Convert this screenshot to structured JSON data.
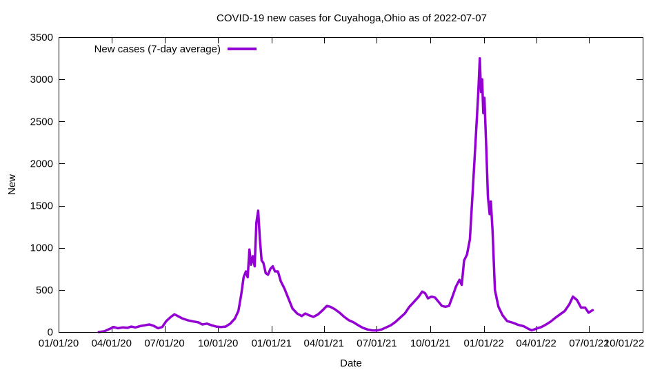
{
  "chart_data": {
    "type": "line",
    "title": "COVID-19 new cases for Cuyahoga,Ohio as of 2022-07-07",
    "xlabel": "Date",
    "ylabel": "New",
    "xlim": [
      "2020-01-01",
      "2022-10-01"
    ],
    "ylim": [
      0,
      3500
    ],
    "x_ticks": [
      "01/01/20",
      "04/01/20",
      "07/01/20",
      "10/01/20",
      "01/01/21",
      "04/01/21",
      "07/01/21",
      "10/01/21",
      "01/01/22",
      "04/01/22",
      "07/01/22",
      "10/01/22"
    ],
    "y_ticks": [
      0,
      500,
      1000,
      1500,
      2000,
      2500,
      3000,
      3500
    ],
    "grid": false,
    "legend_position": "top-left",
    "series": [
      {
        "name": "New cases (7-day average)",
        "color": "#9400d3",
        "points": [
          [
            "2020-03-10",
            0
          ],
          [
            "2020-03-20",
            10
          ],
          [
            "2020-03-28",
            35
          ],
          [
            "2020-04-05",
            60
          ],
          [
            "2020-04-12",
            45
          ],
          [
            "2020-04-20",
            55
          ],
          [
            "2020-04-28",
            50
          ],
          [
            "2020-05-05",
            65
          ],
          [
            "2020-05-12",
            55
          ],
          [
            "2020-05-20",
            70
          ],
          [
            "2020-05-28",
            80
          ],
          [
            "2020-06-05",
            90
          ],
          [
            "2020-06-12",
            75
          ],
          [
            "2020-06-20",
            45
          ],
          [
            "2020-06-27",
            60
          ],
          [
            "2020-07-04",
            130
          ],
          [
            "2020-07-12",
            180
          ],
          [
            "2020-07-18",
            210
          ],
          [
            "2020-07-24",
            190
          ],
          [
            "2020-08-01",
            160
          ],
          [
            "2020-08-10",
            140
          ],
          [
            "2020-08-20",
            125
          ],
          [
            "2020-08-28",
            115
          ],
          [
            "2020-09-04",
            90
          ],
          [
            "2020-09-12",
            100
          ],
          [
            "2020-09-20",
            80
          ],
          [
            "2020-09-28",
            65
          ],
          [
            "2020-10-06",
            60
          ],
          [
            "2020-10-14",
            65
          ],
          [
            "2020-10-22",
            100
          ],
          [
            "2020-10-30",
            160
          ],
          [
            "2020-11-05",
            250
          ],
          [
            "2020-11-10",
            450
          ],
          [
            "2020-11-14",
            650
          ],
          [
            "2020-11-18",
            720
          ],
          [
            "2020-11-21",
            650
          ],
          [
            "2020-11-24",
            980
          ],
          [
            "2020-11-27",
            800
          ],
          [
            "2020-11-30",
            900
          ],
          [
            "2020-12-03",
            780
          ],
          [
            "2020-12-06",
            1300
          ],
          [
            "2020-12-09",
            1440
          ],
          [
            "2020-12-12",
            1100
          ],
          [
            "2020-12-15",
            850
          ],
          [
            "2020-12-18",
            820
          ],
          [
            "2020-12-22",
            700
          ],
          [
            "2020-12-26",
            680
          ],
          [
            "2020-12-30",
            750
          ],
          [
            "2021-01-03",
            780
          ],
          [
            "2021-01-07",
            720
          ],
          [
            "2021-01-12",
            720
          ],
          [
            "2021-01-17",
            600
          ],
          [
            "2021-01-23",
            520
          ],
          [
            "2021-01-30",
            400
          ],
          [
            "2021-02-06",
            280
          ],
          [
            "2021-02-14",
            220
          ],
          [
            "2021-02-22",
            190
          ],
          [
            "2021-02-28",
            220
          ],
          [
            "2021-03-06",
            200
          ],
          [
            "2021-03-14",
            180
          ],
          [
            "2021-03-22",
            210
          ],
          [
            "2021-03-30",
            260
          ],
          [
            "2021-04-06",
            310
          ],
          [
            "2021-04-12",
            300
          ],
          [
            "2021-04-20",
            270
          ],
          [
            "2021-04-28",
            230
          ],
          [
            "2021-05-06",
            180
          ],
          [
            "2021-05-14",
            140
          ],
          [
            "2021-05-22",
            115
          ],
          [
            "2021-05-30",
            80
          ],
          [
            "2021-06-07",
            50
          ],
          [
            "2021-06-15",
            30
          ],
          [
            "2021-06-23",
            20
          ],
          [
            "2021-07-01",
            18
          ],
          [
            "2021-07-09",
            30
          ],
          [
            "2021-07-17",
            55
          ],
          [
            "2021-07-25",
            80
          ],
          [
            "2021-08-02",
            120
          ],
          [
            "2021-08-10",
            170
          ],
          [
            "2021-08-18",
            220
          ],
          [
            "2021-08-26",
            300
          ],
          [
            "2021-09-03",
            360
          ],
          [
            "2021-09-11",
            420
          ],
          [
            "2021-09-17",
            480
          ],
          [
            "2021-09-22",
            460
          ],
          [
            "2021-09-27",
            400
          ],
          [
            "2021-10-03",
            420
          ],
          [
            "2021-10-09",
            410
          ],
          [
            "2021-10-15",
            360
          ],
          [
            "2021-10-21",
            310
          ],
          [
            "2021-10-27",
            300
          ],
          [
            "2021-11-02",
            310
          ],
          [
            "2021-11-08",
            420
          ],
          [
            "2021-11-14",
            540
          ],
          [
            "2021-11-20",
            620
          ],
          [
            "2021-11-24",
            560
          ],
          [
            "2021-11-28",
            850
          ],
          [
            "2021-12-03",
            920
          ],
          [
            "2021-12-08",
            1100
          ],
          [
            "2021-12-13",
            1700
          ],
          [
            "2021-12-18",
            2300
          ],
          [
            "2021-12-22",
            2800
          ],
          [
            "2021-12-25",
            3250
          ],
          [
            "2021-12-27",
            2850
          ],
          [
            "2021-12-29",
            3000
          ],
          [
            "2021-12-31",
            2600
          ],
          [
            "2022-01-02",
            2780
          ],
          [
            "2022-01-05",
            2200
          ],
          [
            "2022-01-08",
            1600
          ],
          [
            "2022-01-11",
            1400
          ],
          [
            "2022-01-13",
            1550
          ],
          [
            "2022-01-16",
            1200
          ],
          [
            "2022-01-20",
            500
          ],
          [
            "2022-01-26",
            300
          ],
          [
            "2022-02-02",
            200
          ],
          [
            "2022-02-10",
            130
          ],
          [
            "2022-02-20",
            110
          ],
          [
            "2022-03-01",
            85
          ],
          [
            "2022-03-10",
            70
          ],
          [
            "2022-03-18",
            40
          ],
          [
            "2022-03-24",
            20
          ],
          [
            "2022-04-01",
            40
          ],
          [
            "2022-04-10",
            60
          ],
          [
            "2022-04-18",
            90
          ],
          [
            "2022-04-26",
            125
          ],
          [
            "2022-05-04",
            170
          ],
          [
            "2022-05-12",
            210
          ],
          [
            "2022-05-20",
            250
          ],
          [
            "2022-05-28",
            330
          ],
          [
            "2022-06-03",
            420
          ],
          [
            "2022-06-10",
            380
          ],
          [
            "2022-06-17",
            290
          ],
          [
            "2022-06-24",
            290
          ],
          [
            "2022-06-30",
            230
          ],
          [
            "2022-07-07",
            260
          ]
        ]
      }
    ]
  }
}
